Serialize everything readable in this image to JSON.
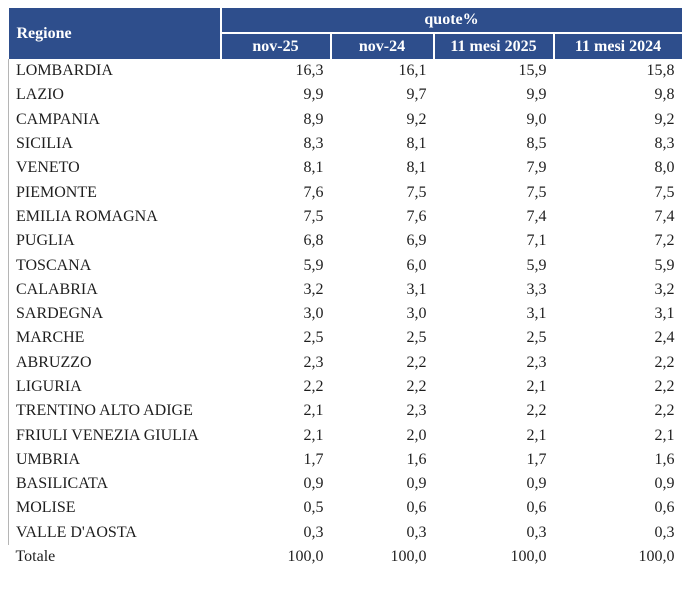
{
  "chart_data": {
    "type": "table",
    "title": "quote%",
    "row_header": "Regione",
    "columns": [
      "nov-25",
      "nov-24",
      "11 mesi 2025",
      "11 mesi 2024"
    ],
    "rows": [
      {
        "region": "LOMBARDIA",
        "values": [
          "16,3",
          "16,1",
          "15,9",
          "15,8"
        ]
      },
      {
        "region": "LAZIO",
        "values": [
          "9,9",
          "9,7",
          "9,9",
          "9,8"
        ]
      },
      {
        "region": "CAMPANIA",
        "values": [
          "8,9",
          "9,2",
          "9,0",
          "9,2"
        ]
      },
      {
        "region": "SICILIA",
        "values": [
          "8,3",
          "8,1",
          "8,5",
          "8,3"
        ]
      },
      {
        "region": "VENETO",
        "values": [
          "8,1",
          "8,1",
          "7,9",
          "8,0"
        ]
      },
      {
        "region": "PIEMONTE",
        "values": [
          "7,6",
          "7,5",
          "7,5",
          "7,5"
        ]
      },
      {
        "region": "EMILIA ROMAGNA",
        "values": [
          "7,5",
          "7,6",
          "7,4",
          "7,4"
        ]
      },
      {
        "region": "PUGLIA",
        "values": [
          "6,8",
          "6,9",
          "7,1",
          "7,2"
        ]
      },
      {
        "region": "TOSCANA",
        "values": [
          "5,9",
          "6,0",
          "5,9",
          "5,9"
        ]
      },
      {
        "region": "CALABRIA",
        "values": [
          "3,2",
          "3,1",
          "3,3",
          "3,2"
        ]
      },
      {
        "region": "SARDEGNA",
        "values": [
          "3,0",
          "3,0",
          "3,1",
          "3,1"
        ]
      },
      {
        "region": "MARCHE",
        "values": [
          "2,5",
          "2,5",
          "2,5",
          "2,4"
        ]
      },
      {
        "region": "ABRUZZO",
        "values": [
          "2,3",
          "2,2",
          "2,3",
          "2,2"
        ]
      },
      {
        "region": "LIGURIA",
        "values": [
          "2,2",
          "2,2",
          "2,1",
          "2,2"
        ]
      },
      {
        "region": "TRENTINO ALTO ADIGE",
        "values": [
          "2,1",
          "2,3",
          "2,2",
          "2,2"
        ]
      },
      {
        "region": "FRIULI VENEZIA GIULIA",
        "values": [
          "2,1",
          "2,0",
          "2,1",
          "2,1"
        ]
      },
      {
        "region": "UMBRIA",
        "values": [
          "1,7",
          "1,6",
          "1,7",
          "1,6"
        ]
      },
      {
        "region": "BASILICATA",
        "values": [
          "0,9",
          "0,9",
          "0,9",
          "0,9"
        ]
      },
      {
        "region": "MOLISE",
        "values": [
          "0,5",
          "0,6",
          "0,6",
          "0,6"
        ]
      },
      {
        "region": "VALLE D'AOSTA",
        "values": [
          "0,3",
          "0,3",
          "0,3",
          "0,3"
        ]
      }
    ],
    "total": {
      "label": "Totale",
      "values": [
        "100,0",
        "100,0",
        "100,0",
        "100,0"
      ]
    }
  },
  "colors": {
    "header_bg": "#2E4E8C",
    "header_text": "#FFFFFF",
    "body_text": "#1E1E1E",
    "header_separator": "#FFFFFF",
    "body_left_border": "#B5B5B5"
  }
}
